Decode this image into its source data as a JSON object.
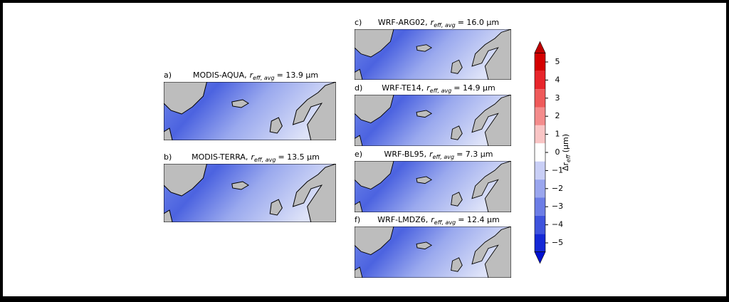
{
  "panels": [
    {
      "label": "a)",
      "name": "MODIS-AQUA,",
      "variable": "r",
      "variable_sub": "eff, avg",
      "value_text": "= 13.9 μm"
    },
    {
      "label": "b)",
      "name": "MODIS-TERRA,",
      "variable": "r",
      "variable_sub": "eff, avg",
      "value_text": "= 13.5 μm"
    },
    {
      "label": "c)",
      "name": "WRF-ARG02,",
      "variable": "r",
      "variable_sub": "eff, avg",
      "value_text": "= 16.0 μm"
    },
    {
      "label": "d)",
      "name": "WRF-TE14,",
      "variable": "r",
      "variable_sub": "eff, avg",
      "value_text": "= 14.9 μm"
    },
    {
      "label": "e)",
      "name": "WRF-BL95,",
      "variable": "r",
      "variable_sub": "eff, avg",
      "value_text": "= 7.3 μm"
    },
    {
      "label": "f)",
      "name": "WRF-LMDZ6,",
      "variable": "r",
      "variable_sub": "eff, avg",
      "value_text": "= 12.4 μm"
    }
  ],
  "colorbar": {
    "label_main": "Δr",
    "label_sub": "eff",
    "label_unit": "(μm)",
    "ticks": [
      {
        "value": 5,
        "label": "5"
      },
      {
        "value": 4,
        "label": "4"
      },
      {
        "value": 3,
        "label": "3"
      },
      {
        "value": 2,
        "label": "2"
      },
      {
        "value": 1,
        "label": "1"
      },
      {
        "value": 0,
        "label": "0"
      },
      {
        "value": -1,
        "label": "−1"
      },
      {
        "value": -2,
        "label": "−2"
      },
      {
        "value": -3,
        "label": "−3"
      },
      {
        "value": -4,
        "label": "−4"
      },
      {
        "value": -5,
        "label": "−5"
      }
    ]
  }
}
